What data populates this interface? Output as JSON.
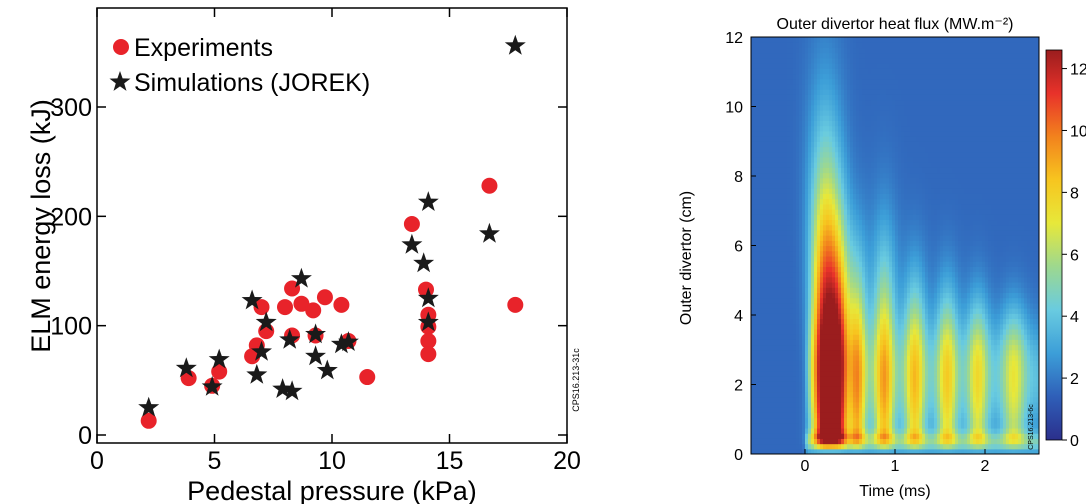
{
  "chart_data": [
    {
      "type": "scatter",
      "xlabel": "Pedestal pressure (kPa)",
      "ylabel": "ELM energy loss (kJ)",
      "xlim": [
        0,
        20
      ],
      "ylim": [
        0,
        360
      ],
      "xticks": [
        "0",
        "5",
        "10",
        "15",
        "20"
      ],
      "yticks": [
        "0",
        "100",
        "200",
        "300"
      ],
      "side_label": "CPS16.213-31c",
      "legend_position": "top-left",
      "series": [
        {
          "name": "Experiments",
          "marker": "circle",
          "color": "#e8232a",
          "points": [
            [
              2.2,
              13
            ],
            [
              3.9,
              52
            ],
            [
              4.9,
              45
            ],
            [
              5.2,
              58
            ],
            [
              6.6,
              72
            ],
            [
              6.8,
              82
            ],
            [
              7.0,
              117
            ],
            [
              7.2,
              95
            ],
            [
              8.0,
              117
            ],
            [
              8.3,
              134
            ],
            [
              8.3,
              91
            ],
            [
              8.7,
              120
            ],
            [
              9.2,
              114
            ],
            [
              9.3,
              91
            ],
            [
              9.7,
              126
            ],
            [
              10.4,
              119
            ],
            [
              10.7,
              86
            ],
            [
              11.5,
              53
            ],
            [
              13.4,
              193
            ],
            [
              14.0,
              133
            ],
            [
              14.1,
              110
            ],
            [
              14.1,
              99
            ],
            [
              14.1,
              86
            ],
            [
              14.1,
              74
            ],
            [
              16.7,
              228
            ],
            [
              17.8,
              119
            ]
          ]
        },
        {
          "name": "Simulations (JOREK)",
          "marker": "star",
          "color": "#1a1a1a",
          "points": [
            [
              2.2,
              25
            ],
            [
              3.8,
              61
            ],
            [
              4.9,
              44
            ],
            [
              5.2,
              69
            ],
            [
              6.6,
              123
            ],
            [
              6.8,
              55
            ],
            [
              7.0,
              76
            ],
            [
              7.2,
              103
            ],
            [
              7.9,
              42
            ],
            [
              8.2,
              87
            ],
            [
              8.3,
              40
            ],
            [
              8.7,
              143
            ],
            [
              9.3,
              92
            ],
            [
              9.3,
              72
            ],
            [
              9.8,
              59
            ],
            [
              10.4,
              83
            ],
            [
              10.7,
              85
            ],
            [
              13.4,
              174
            ],
            [
              13.9,
              157
            ],
            [
              14.1,
              213
            ],
            [
              14.1,
              125
            ],
            [
              14.1,
              103
            ],
            [
              16.7,
              184
            ],
            [
              17.8,
              356
            ]
          ]
        }
      ]
    },
    {
      "type": "heatmap",
      "title": "Outer divertor heat flux (MW.m⁻²)",
      "xlabel": "Time (ms)",
      "ylabel": "Outer divertor (cm)",
      "xlim": [
        -0.6,
        2.6
      ],
      "ylim": [
        0,
        12
      ],
      "xticks": [
        "0",
        "1",
        "2"
      ],
      "yticks": [
        "0",
        "2",
        "4",
        "6",
        "8",
        "10",
        "12"
      ],
      "colorbar": {
        "min": 0,
        "max": 12.6,
        "ticks": [
          "0",
          "2",
          "4",
          "6",
          "8",
          "10",
          "12"
        ]
      },
      "side_label": "CPS16.213-6c",
      "colormap": [
        "#2b2f8c",
        "#2f5fb8",
        "#3c9ed8",
        "#69cbe0",
        "#9dd88f",
        "#e7e83a",
        "#f7c51f",
        "#f2821d",
        "#e8322a",
        "#9b1d1e"
      ],
      "background_level": 1.6,
      "pulses": [
        {
          "t": 0.22,
          "amp": 12.4,
          "top": 12,
          "width": 0.09
        },
        {
          "t": 0.38,
          "amp": 9.5,
          "top": 9.0,
          "width": 0.07
        },
        {
          "t": 0.58,
          "amp": 7.5,
          "top": 8.0,
          "width": 0.07
        },
        {
          "t": 0.88,
          "amp": 7.2,
          "top": 8.5,
          "width": 0.08
        },
        {
          "t": 1.22,
          "amp": 6.5,
          "top": 7.0,
          "width": 0.08
        },
        {
          "t": 1.58,
          "amp": 6.0,
          "top": 6.5,
          "width": 0.08
        },
        {
          "t": 1.92,
          "amp": 5.5,
          "top": 6.0,
          "width": 0.08
        },
        {
          "t": 2.32,
          "amp": 5.0,
          "top": 5.5,
          "width": 0.09
        }
      ]
    }
  ]
}
